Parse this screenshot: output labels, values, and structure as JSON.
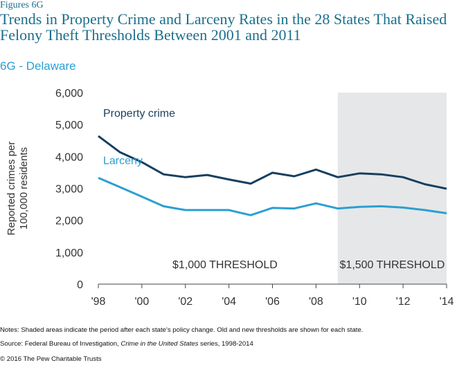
{
  "figure_label": "Figures 6G",
  "title": "Trends in Property Crime and Larceny Rates in the 28 States That Raised Felony Theft Thresholds Between 2001 and 2011",
  "subtitle": "6G - Delaware",
  "notes": "Notes: Shaded areas indicate the period after each state's policy change. Old and new thresholds are shown for each state.",
  "source": {
    "prefix": "Source: Federal Bureau of Investigation, ",
    "italic": "Crime in the United States",
    "suffix": " series, 1998-2014"
  },
  "copyright": "© 2016 The Pew Charitable Trusts",
  "colors": {
    "property_crime": "#173f5f",
    "larceny": "#2b9fd1",
    "shade": "#e6e7e8",
    "axis": "#444444"
  },
  "chart_data": {
    "type": "line",
    "ylabel": [
      "Reported crimes per",
      "100,000 residents"
    ],
    "ylim": [
      0,
      6000
    ],
    "yticks": [
      0,
      1000,
      2000,
      3000,
      4000,
      5000,
      6000
    ],
    "ytick_labels": [
      "0",
      "1,000",
      "2,000",
      "3,000",
      "4,000",
      "5,000",
      "6,000"
    ],
    "xlim": [
      1998,
      2014
    ],
    "xticks": [
      1998,
      2000,
      2002,
      2004,
      2006,
      2008,
      2010,
      2012,
      2014
    ],
    "xtick_labels": [
      "'98",
      "'00",
      "'02",
      "'04",
      "'06",
      "'08",
      "'10",
      "'12",
      "'14"
    ],
    "x": [
      1998,
      1999,
      2000,
      2001,
      2002,
      2003,
      2004,
      2005,
      2006,
      2007,
      2008,
      2009,
      2010,
      2011,
      2012,
      2013,
      2014
    ],
    "series": [
      {
        "name": "Property crime",
        "values": [
          4640,
          4130,
          3820,
          3440,
          3350,
          3420,
          3280,
          3150,
          3490,
          3380,
          3590,
          3350,
          3470,
          3440,
          3350,
          3130,
          2990
        ]
      },
      {
        "name": "Larceny",
        "values": [
          3330,
          3040,
          2740,
          2440,
          2320,
          2320,
          2320,
          2160,
          2390,
          2370,
          2530,
          2370,
          2420,
          2440,
          2400,
          2320,
          2220
        ]
      }
    ],
    "shaded_region": {
      "x_start": 2009,
      "x_end": 2014
    },
    "annotations": [
      "$1,000 THRESHOLD",
      "$1,500 THRESHOLD"
    ],
    "grid": false,
    "legend": "inline labels above lines"
  }
}
